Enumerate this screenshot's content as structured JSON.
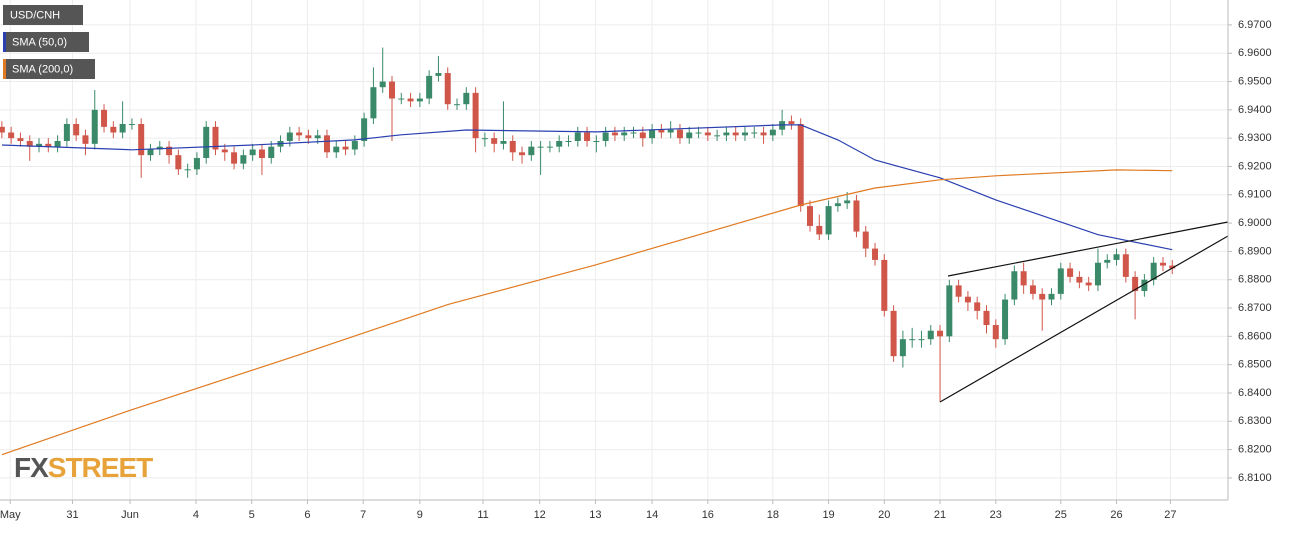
{
  "chart_data": {
    "type": "candlestick",
    "title": "USD/CNH",
    "up_color": "#3a8a6a",
    "down_color": "#d0564a",
    "open": [
      6.934,
      6.932,
      6.93,
      6.929,
      6.927,
      6.928,
      6.927,
      6.929,
      6.935,
      6.931,
      6.928,
      6.94,
      6.934,
      6.932,
      6.935,
      6.935,
      6.924,
      6.926,
      6.927,
      6.924,
      6.919,
      6.919,
      6.923,
      6.934,
      6.926,
      6.925,
      6.921,
      6.924,
      6.926,
      6.923,
      6.927,
      6.929,
      6.932,
      6.931,
      6.93,
      6.931,
      6.925,
      6.927,
      6.926,
      6.929,
      6.937,
      6.948,
      6.95,
      6.944,
      6.944,
      6.943,
      6.944,
      6.952,
      6.953,
      6.942,
      6.942,
      6.946,
      6.93,
      6.93,
      6.928,
      6.929,
      6.925,
      6.924,
      6.927,
      6.927,
      6.927,
      6.929,
      6.929,
      6.932,
      6.929,
      6.929,
      6.932,
      6.931,
      6.932,
      6.932,
      6.93,
      6.933,
      6.932,
      6.933,
      6.93,
      6.932,
      6.932,
      6.931,
      6.931,
      6.932,
      6.931,
      6.932,
      6.932,
      6.931,
      6.933,
      6.936,
      6.935,
      6.906,
      6.899,
      6.896,
      6.906,
      6.907,
      6.908,
      6.897,
      6.891,
      6.887,
      6.869,
      6.853,
      6.859,
      6.859,
      6.859,
      6.862,
      6.86,
      6.878,
      6.874,
      6.872,
      6.869,
      6.864,
      6.859,
      6.873,
      6.883,
      6.878,
      6.875,
      6.873,
      6.875,
      6.884,
      6.881,
      6.879,
      6.878,
      6.886,
      6.887,
      6.889,
      6.881,
      6.876,
      6.88,
      6.886,
      6.885
    ],
    "high": [
      6.936,
      6.934,
      6.932,
      6.931,
      6.93,
      6.93,
      6.931,
      6.937,
      6.937,
      6.933,
      6.947,
      6.942,
      6.936,
      6.943,
      6.937,
      6.937,
      6.928,
      6.929,
      6.929,
      6.926,
      6.921,
      6.925,
      6.936,
      6.936,
      6.928,
      6.927,
      6.926,
      6.928,
      6.928,
      6.929,
      6.931,
      6.934,
      6.934,
      6.933,
      6.933,
      6.933,
      6.929,
      6.929,
      6.931,
      6.939,
      6.955,
      6.962,
      6.952,
      6.946,
      6.946,
      6.946,
      6.954,
      6.959,
      6.955,
      6.944,
      6.948,
      6.948,
      6.932,
      6.932,
      6.943,
      6.931,
      6.927,
      6.929,
      6.929,
      6.929,
      6.931,
      6.931,
      6.934,
      6.934,
      6.931,
      6.934,
      6.934,
      6.934,
      6.934,
      6.934,
      6.935,
      6.935,
      6.936,
      6.935,
      6.934,
      6.934,
      6.934,
      6.933,
      6.934,
      6.934,
      6.934,
      6.934,
      6.934,
      6.935,
      6.94,
      6.938,
      6.937,
      6.908,
      6.903,
      6.908,
      6.909,
      6.911,
      6.91,
      6.899,
      6.893,
      6.889,
      6.871,
      6.862,
      6.863,
      6.862,
      6.864,
      6.864,
      6.88,
      6.88,
      6.876,
      6.874,
      6.871,
      6.866,
      6.875,
      6.885,
      6.886,
      6.88,
      6.877,
      6.877,
      6.886,
      6.886,
      6.883,
      6.881,
      6.891,
      6.889,
      6.891,
      6.891,
      6.883,
      6.882,
      6.888,
      6.888,
      6.887
    ],
    "low": [
      6.93,
      6.928,
      6.927,
      6.922,
      6.925,
      6.925,
      6.925,
      6.927,
      6.929,
      6.924,
      6.926,
      6.932,
      6.93,
      6.93,
      6.933,
      6.916,
      6.922,
      6.924,
      6.921,
      6.917,
      6.916,
      6.917,
      6.921,
      6.924,
      6.922,
      6.919,
      6.919,
      6.922,
      6.917,
      6.921,
      6.925,
      6.927,
      6.929,
      6.928,
      6.928,
      6.923,
      6.923,
      6.924,
      6.924,
      6.927,
      6.935,
      6.946,
      6.929,
      6.942,
      6.941,
      6.941,
      6.942,
      6.95,
      6.94,
      6.94,
      6.94,
      6.925,
      6.927,
      6.925,
      6.926,
      6.922,
      6.921,
      6.922,
      6.917,
      6.925,
      6.925,
      6.927,
      6.927,
      6.927,
      6.925,
      6.927,
      6.929,
      6.929,
      6.93,
      6.927,
      6.928,
      6.93,
      6.93,
      6.928,
      6.928,
      6.93,
      6.929,
      6.929,
      6.929,
      6.929,
      6.929,
      6.93,
      6.928,
      6.929,
      6.931,
      6.933,
      6.904,
      6.897,
      6.894,
      6.894,
      6.904,
      6.905,
      6.895,
      6.888,
      6.885,
      6.867,
      6.851,
      6.849,
      6.856,
      6.856,
      6.857,
      6.837,
      6.858,
      6.872,
      6.869,
      6.866,
      6.861,
      6.856,
      6.857,
      6.871,
      6.875,
      6.873,
      6.862,
      6.871,
      6.873,
      6.879,
      6.877,
      6.876,
      6.876,
      6.884,
      6.885,
      6.879,
      6.866,
      6.874,
      6.878,
      6.883,
      6.882
    ],
    "close": [
      6.932,
      6.93,
      6.929,
      6.927,
      6.928,
      6.927,
      6.929,
      6.935,
      6.931,
      6.928,
      6.94,
      6.934,
      6.932,
      6.935,
      6.935,
      6.924,
      6.926,
      6.927,
      6.924,
      6.919,
      6.919,
      6.923,
      6.934,
      6.926,
      6.925,
      6.921,
      6.924,
      6.926,
      6.923,
      6.927,
      6.929,
      6.932,
      6.931,
      6.93,
      6.931,
      6.925,
      6.927,
      6.926,
      6.929,
      6.937,
      6.948,
      6.95,
      6.944,
      6.944,
      6.943,
      6.944,
      6.952,
      6.953,
      6.942,
      6.942,
      6.946,
      6.93,
      6.93,
      6.928,
      6.929,
      6.925,
      6.924,
      6.927,
      6.927,
      6.927,
      6.929,
      6.929,
      6.932,
      6.929,
      6.929,
      6.932,
      6.931,
      6.932,
      6.932,
      6.93,
      6.933,
      6.932,
      6.933,
      6.93,
      6.932,
      6.932,
      6.931,
      6.931,
      6.932,
      6.931,
      6.932,
      6.932,
      6.931,
      6.933,
      6.936,
      6.935,
      6.906,
      6.899,
      6.896,
      6.906,
      6.907,
      6.908,
      6.897,
      6.891,
      6.887,
      6.869,
      6.853,
      6.859,
      6.859,
      6.859,
      6.862,
      6.86,
      6.878,
      6.874,
      6.872,
      6.869,
      6.864,
      6.859,
      6.873,
      6.883,
      6.878,
      6.875,
      6.873,
      6.875,
      6.884,
      6.881,
      6.879,
      6.878,
      6.886,
      6.887,
      6.889,
      6.881,
      6.876,
      6.88,
      6.886,
      6.885,
      6.884
    ],
    "series": [
      {
        "name": "SMA (50,0)",
        "color": "#2a3fb0",
        "x": [
          0,
          14,
          27,
          38,
          43,
          50,
          64,
          84,
          86,
          90,
          94,
          101,
          107,
          118,
          126
        ],
        "values": [
          6.9276,
          6.9259,
          6.9276,
          6.9294,
          6.9312,
          6.9329,
          6.9322,
          6.9347,
          6.9347,
          6.9294,
          6.9223,
          6.916,
          6.9082,
          6.8959,
          6.8906
        ]
      },
      {
        "name": "SMA (200,0)",
        "color": "#e07a22",
        "x": [
          0,
          14,
          32,
          48,
          64,
          86,
          94,
          101,
          107,
          120,
          126
        ],
        "values": [
          6.8182,
          6.8341,
          6.8535,
          6.8712,
          6.8853,
          6.9064,
          6.9124,
          6.9153,
          6.9167,
          6.9188,
          6.9185
        ]
      }
    ],
    "xlim": [
      -0.2,
      132
    ],
    "ylim": [
      6.8022,
      6.9788
    ],
    "xticks": [
      {
        "value": 0.9,
        "label": "May"
      },
      {
        "value": 7.6,
        "label": "31"
      },
      {
        "value": 13.8,
        "label": "Jun"
      },
      {
        "value": 20.9,
        "label": "4"
      },
      {
        "value": 26.9,
        "label": "5"
      },
      {
        "value": 32.9,
        "label": "6"
      },
      {
        "value": 38.9,
        "label": "7"
      },
      {
        "value": 45,
        "label": "9"
      },
      {
        "value": 51.8,
        "label": "11"
      },
      {
        "value": 57.9,
        "label": "12"
      },
      {
        "value": 63.9,
        "label": "13"
      },
      {
        "value": 70,
        "label": "14"
      },
      {
        "value": 76,
        "label": "16"
      },
      {
        "value": 83,
        "label": "18"
      },
      {
        "value": 89,
        "label": "19"
      },
      {
        "value": 95,
        "label": "20"
      },
      {
        "value": 101,
        "label": "21"
      },
      {
        "value": 107,
        "label": "23"
      },
      {
        "value": 114,
        "label": "25"
      },
      {
        "value": 120,
        "label": "26"
      },
      {
        "value": 125.8,
        "label": "27"
      }
    ],
    "yticks": [
      {
        "value": 6.81,
        "label": "6.8100"
      },
      {
        "value": 6.82,
        "label": "6.8200"
      },
      {
        "value": 6.83,
        "label": "6.8300"
      },
      {
        "value": 6.84,
        "label": "6.8400"
      },
      {
        "value": 6.85,
        "label": "6.8500"
      },
      {
        "value": 6.86,
        "label": "6.8600"
      },
      {
        "value": 6.87,
        "label": "6.8700"
      },
      {
        "value": 6.88,
        "label": "6.8800"
      },
      {
        "value": 6.89,
        "label": "6.8900"
      },
      {
        "value": 6.9,
        "label": "6.9000"
      },
      {
        "value": 6.91,
        "label": "6.9100"
      },
      {
        "value": 6.92,
        "label": "6.9200"
      },
      {
        "value": 6.93,
        "label": "6.9300"
      },
      {
        "value": 6.94,
        "label": "6.9400"
      },
      {
        "value": 6.95,
        "label": "6.9500"
      },
      {
        "value": 6.96,
        "label": "6.9600"
      },
      {
        "value": 6.97,
        "label": "6.9700"
      }
    ],
    "grid": true,
    "watermark": [
      "FX",
      "STREET"
    ]
  }
}
